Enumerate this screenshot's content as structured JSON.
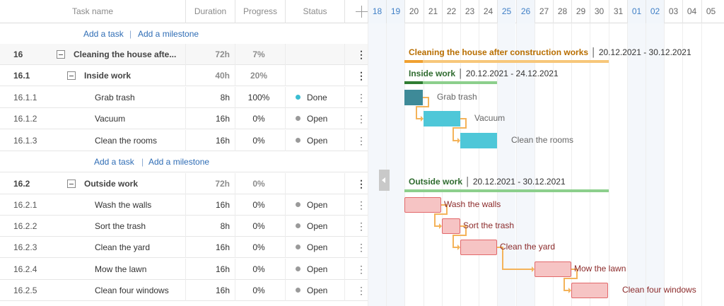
{
  "columns": {
    "name": "Task name",
    "duration": "Duration",
    "progress": "Progress",
    "status": "Status",
    "add_column": "add-column-icon",
    "menu_glyph": "⋮"
  },
  "add_links": {
    "task": "Add a task",
    "milestone": "Add a milestone",
    "separator": "|"
  },
  "rows": [
    {
      "id": "16",
      "name": "Cleaning the house afte...",
      "duration": "72h",
      "progress": "7%",
      "status": ""
    },
    {
      "id": "16.1",
      "name": "Inside work",
      "duration": "40h",
      "progress": "20%",
      "status": ""
    },
    {
      "id": "16.1.1",
      "name": "Grab trash",
      "duration": "8h",
      "progress": "100%",
      "status": "Done"
    },
    {
      "id": "16.1.2",
      "name": "Vacuum",
      "duration": "16h",
      "progress": "0%",
      "status": "Open"
    },
    {
      "id": "16.1.3",
      "name": "Clean the rooms",
      "duration": "16h",
      "progress": "0%",
      "status": "Open"
    },
    {
      "id": "16.2",
      "name": "Outside work",
      "duration": "72h",
      "progress": "0%",
      "status": ""
    },
    {
      "id": "16.2.1",
      "name": "Wash the walls",
      "duration": "16h",
      "progress": "0%",
      "status": "Open"
    },
    {
      "id": "16.2.2",
      "name": "Sort the trash",
      "duration": "8h",
      "progress": "0%",
      "status": "Open"
    },
    {
      "id": "16.2.3",
      "name": "Clean the yard",
      "duration": "16h",
      "progress": "0%",
      "status": "Open"
    },
    {
      "id": "16.2.4",
      "name": "Mow the lawn",
      "duration": "16h",
      "progress": "0%",
      "status": "Open"
    },
    {
      "id": "16.2.5",
      "name": "Clean four windows",
      "duration": "16h",
      "progress": "0%",
      "status": "Open"
    }
  ],
  "status_colors": {
    "Done": "#3bbdd1",
    "Open": "#9a9a9a"
  },
  "timeline": {
    "days": [
      "18",
      "19",
      "20",
      "21",
      "22",
      "23",
      "24",
      "25",
      "26",
      "27",
      "28",
      "29",
      "30",
      "31",
      "01",
      "02",
      "03",
      "04",
      "05"
    ],
    "weekend_days": [
      "18",
      "19",
      "25",
      "26",
      "01",
      "02"
    ]
  },
  "gantt": {
    "project": {
      "title": "Cleaning the house after construction works",
      "dates": "20.12.2021 - 30.12.2021",
      "progress": 0.07,
      "color": "#f7c77a",
      "progress_color": "#f0a030",
      "text_color": "#b86e00"
    },
    "inside": {
      "title": "Inside work",
      "dates": "20.12.2021 - 24.12.2021",
      "progress": 0.2,
      "color": "#8ccf8c",
      "progress_color": "#2f7d32",
      "text_color": "#2f6b2f"
    },
    "outside": {
      "title": "Outside work",
      "dates": "20.12.2021 - 30.12.2021",
      "progress": 0,
      "color": "#8ccf8c",
      "progress_color": "#2f7d32",
      "text_color": "#2f6b2f"
    },
    "inside_tasks": [
      {
        "name": "Grab trash",
        "start": "20",
        "days": 1
      },
      {
        "name": "Vacuum",
        "start": "21",
        "days": 2
      },
      {
        "name": "Clean the rooms",
        "start": "23",
        "days": 2
      }
    ],
    "outside_tasks": [
      {
        "name": "Wash the walls",
        "start": "20",
        "days": 2
      },
      {
        "name": "Sort the trash",
        "start": "22",
        "days": 1
      },
      {
        "name": "Clean the yard",
        "start": "23",
        "days": 2
      },
      {
        "name": "Mow the lawn",
        "start": "27",
        "days": 2
      },
      {
        "name": "Clean four windows",
        "start": "29",
        "days": 2
      }
    ],
    "colors": {
      "done": "#3e8a98",
      "open_inside": "#4ec7d8",
      "open_outside": "#f6c4c4",
      "outside_border": "#e2686a",
      "inside_label": "#666",
      "outside_label": "#8b2a2a",
      "link": "#f4b35a"
    }
  }
}
